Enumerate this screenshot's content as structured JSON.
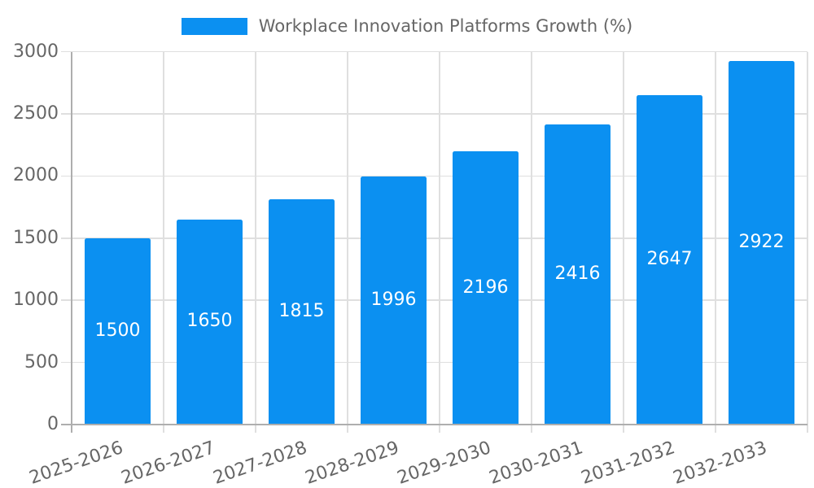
{
  "chart_data": {
    "type": "bar",
    "title": "",
    "legend": {
      "label": "Workplace Innovation Platforms Growth (%)",
      "position": "top"
    },
    "categories": [
      "2025-2026",
      "2026-2027",
      "2027-2028",
      "2028-2029",
      "2029-2030",
      "2030-2031",
      "2031-2032",
      "2032-2033"
    ],
    "values": [
      1500,
      1650,
      1815,
      1996,
      2196,
      2416,
      2647,
      2922
    ],
    "value_labels": [
      "1500",
      "1650",
      "1815",
      "1996",
      "2196",
      "2416",
      "2647",
      "2922"
    ],
    "xlabel": "",
    "ylabel": "",
    "ylim": [
      0,
      3000
    ],
    "yticks": [
      0,
      500,
      1000,
      1500,
      2000,
      2500,
      3000
    ],
    "grid": true,
    "x_label_rotation_deg": -19,
    "colors": {
      "bar": "#0b90f1",
      "bar_label": "#ffffff",
      "axis_text": "#666666",
      "legend_text": "#666666",
      "grid_line": "#dfdfdf",
      "axis_line": "#aeaeae",
      "background": "#ffffff"
    }
  }
}
